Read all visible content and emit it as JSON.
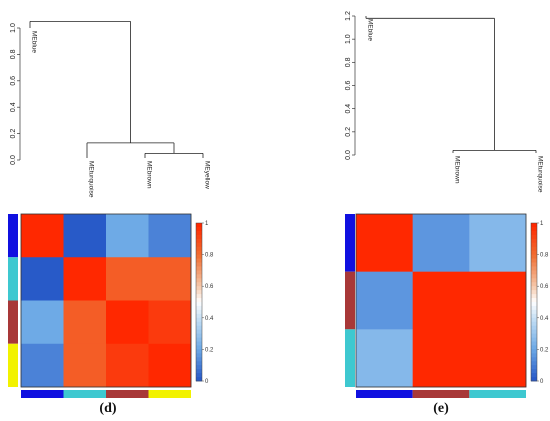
{
  "panels": [
    {
      "caption": "d",
      "dendrogram": {
        "y_ticks": [
          "0.0",
          "0.2",
          "0.4",
          "0.6",
          "0.8",
          "1.0"
        ],
        "leaves": [
          "MEblue",
          "MEturquoise",
          "MEbrown",
          "MEyellow"
        ]
      },
      "heatmap": {
        "row_colors": [
          "#1010e0",
          "#3ec8d0",
          "#a83838",
          "#f2f200"
        ],
        "col_colors": [
          "#1010e0",
          "#3ec8d0",
          "#a83838",
          "#f2f200"
        ],
        "values": [
          [
            1.0,
            0.0,
            0.2,
            0.1
          ],
          [
            0.0,
            1.0,
            0.85,
            0.85
          ],
          [
            0.2,
            0.85,
            1.0,
            0.95
          ],
          [
            0.1,
            0.85,
            0.95,
            1.0
          ]
        ]
      },
      "scale_labels": [
        "1",
        "0.8",
        "0.6",
        "0.4",
        "0.2",
        "0"
      ]
    },
    {
      "caption": "e",
      "dendrogram": {
        "y_ticks": [
          "0.0",
          "0.2",
          "0.4",
          "0.6",
          "0.8",
          "1.0",
          "1.2"
        ],
        "leaves": [
          "MEblue",
          "MEbrown",
          "MEturquoise"
        ]
      },
      "heatmap": {
        "row_colors": [
          "#1010e0",
          "#a83838",
          "#3ec8d0"
        ],
        "col_colors": [
          "#1010e0",
          "#a83838",
          "#3ec8d0"
        ],
        "values": [
          [
            1.0,
            0.15,
            0.25
          ],
          [
            0.15,
            1.0,
            1.0
          ],
          [
            0.25,
            1.0,
            1.0
          ]
        ]
      },
      "scale_labels": [
        "1",
        "0.8",
        "0.6",
        "0.4",
        "0.2",
        "0"
      ]
    }
  ]
}
